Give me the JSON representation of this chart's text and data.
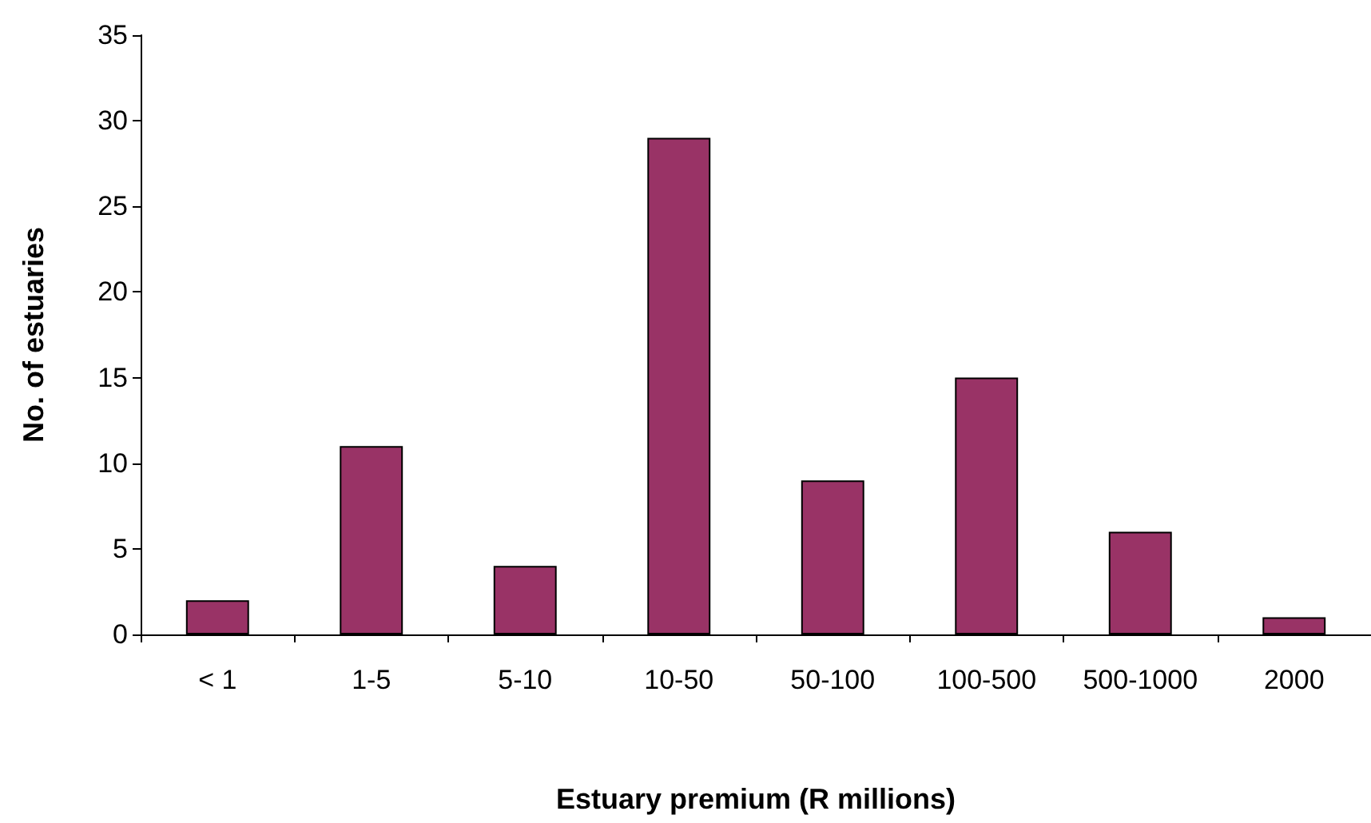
{
  "chart_data": {
    "type": "bar",
    "xlabel": "Estuary premium (R millions)",
    "ylabel": "No. of estuaries",
    "categories": [
      "< 1",
      "1-5",
      "5-10",
      "10-50",
      "50-100",
      "100-500",
      "500-1000",
      "2000"
    ],
    "values": [
      2,
      11,
      4,
      29,
      9,
      15,
      6,
      1
    ],
    "color": "#993366",
    "ylim": [
      0,
      35
    ],
    "yticks": [
      0,
      5,
      10,
      15,
      20,
      25,
      30,
      35
    ],
    "grid": false
  }
}
